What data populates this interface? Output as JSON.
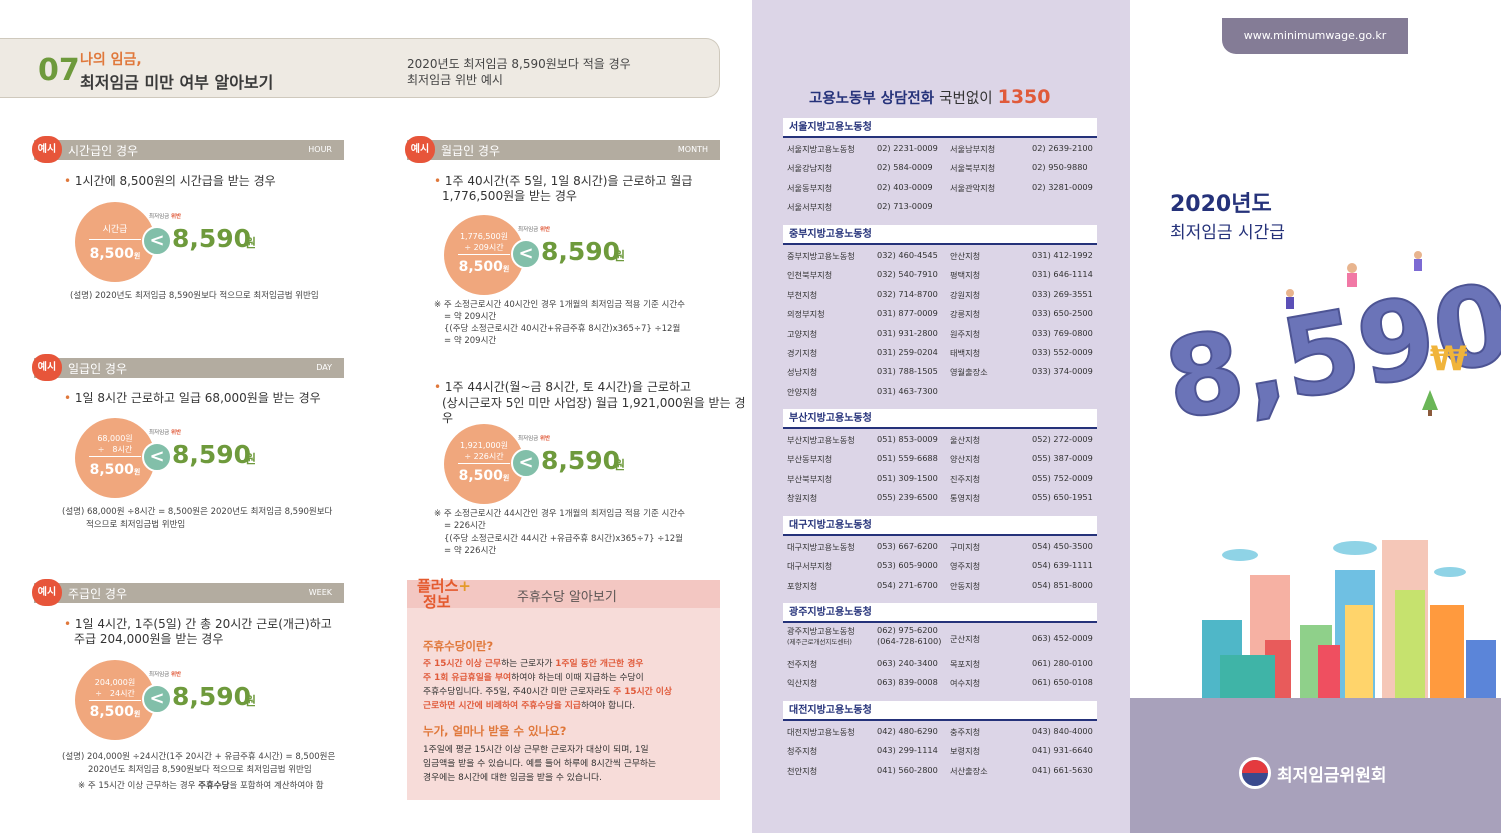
{
  "header": {
    "num": "07",
    "title1": "나의 임금,",
    "title2": "최저임금 미만 여부 알아보기",
    "desc1": "2020년도 최저임금 8,590원보다 적을 경우",
    "desc2": "최저임금 위반 예시"
  },
  "common": {
    "example": "예시",
    "violation_prefix": "최저임금",
    "violation": "위반",
    "result": "8,590",
    "won": "원",
    "won_small": "원",
    "lt": "<"
  },
  "hour": {
    "title": "시간급인 경우",
    "en": "HOUR",
    "bullet": "1시간에 8,500원의 시간급을 받는 경우",
    "top1": "시간급",
    "value": "8,500",
    "note": "(설명) 2020년도 최저임금 8,590원보다 적으므로 최저임금법 위반임"
  },
  "day": {
    "title": "일급인 경우",
    "en": "DAY",
    "bullet": "1일 8시간 근로하고 일급 68,000원을 받는 경우",
    "top1": "68,000원",
    "top2": "÷　8시간",
    "value": "8,500",
    "note1": "(설명) 68,000원 ÷8시간 = 8,500원은 2020년도 최저임금 8,590원보다",
    "note2": "적으므로 최저임금법 위반임"
  },
  "week": {
    "title": "주급인 경우",
    "en": "WEEK",
    "bullet1": "1일 4시간, 1주(5일) 간 총 20시간 근로(개근)하고",
    "bullet2": "주급 204,000원을 받는 경우",
    "top1": "204,000원",
    "top2": "÷　24시간",
    "value": "8,500",
    "note1": "(설명) 204,000원 ÷24시간(1주 20시간 + 유급주휴 4시간) = 8,500원은",
    "note2": "2020년도 최저임금 8,590원보다 적으므로 최저임금법 위반임",
    "note3a": "※ 주 15시간 이상 근무하는 경우 ",
    "note3b": "주휴수당",
    "note3c": "을 포함하여 계산하여야 함"
  },
  "month": {
    "title": "월급인 경우",
    "en": "MONTH",
    "bullet1": "1주 40시간(주 5일, 1일 8시간)을 근로하고 월급",
    "bullet2": "1,776,500원을 받는 경우",
    "top1": "1,776,500원",
    "top2": "÷ 209시간",
    "value": "8,500",
    "note1": "※ 주 소정근로시간 40시간인 경우 1개월의 최저임금 적용 기준 시간수",
    "note2": "= 약 209시간",
    "note3": "{(주당 소정근로시간 40시간+유급주휴 8시간)x365÷7} ÷12월",
    "note4": "= 약 209시간"
  },
  "month2": {
    "bullet1": "1주 44시간(월~금 8시간, 토 4시간)을 근로하고",
    "bullet2": "(상시근로자 5인 미만 사업장) 월급 1,921,000원을 받는 경우",
    "top1": "1,921,000원",
    "top2": "÷ 226시간",
    "value": "8,500",
    "note1": "※ 주 소정근로시간 44시간인 경우 1개월의 최저임금 적용 기준 시간수",
    "note2": "= 226시간",
    "note3": "{(주당 소정근로시간 44시간 +유급주휴 8시간)x365÷7} ÷12월",
    "note4": "= 약 226시간"
  },
  "plus": {
    "badge1": "플러스",
    "badge_plus": "+",
    "badge2": "정보",
    "title": "주휴수당 알아보기",
    "q1": "주휴수당이란?",
    "p1a": "주 15시간 이상 근무",
    "p1b": "하는 근로자가 ",
    "p1c": "1주일 동안 개근한 경우",
    "p1d": "주 1회 유급휴일을 부여",
    "p1e": "하여야 하는데 이때 지급하는 수당이",
    "p1f": "주휴수당입니다. 주5일, 주40시간 미만 근로자라도 ",
    "p1g": "주 15시간 이상",
    "p1h": "근로하면 시간에 비례하여 주휴수당을 지급",
    "p1i": "하여야 합니다.",
    "q2": "누가, 얼마나 받을 수 있나요?",
    "p2a": "1주일에 평균 15시간 이상 근무한 근로자가 대상이 되며, 1일",
    "p2b": "임금액을 받을 수 있습니다. 예를 들어 하루에 8시간씩 근무하는",
    "p2c": "경우에는 8시간에 대한 임금을 받을 수 있습니다."
  },
  "contact": {
    "label": "고용노동부 상담전화",
    "plain": "국번없이",
    "number": "1350"
  },
  "offices": [
    {
      "name": "서울지방고용노동청",
      "rows": [
        [
          "서울지방고용노동청",
          "02) 2231-0009",
          "서울남부지청",
          "02) 2639-2100"
        ],
        [
          "서울강남지청",
          "02) 584-0009",
          "서울북부지청",
          "02) 950-9880"
        ],
        [
          "서울동부지청",
          "02) 403-0009",
          "서울관악지청",
          "02) 3281-0009"
        ],
        [
          "서울서부지청",
          "02) 713-0009",
          "",
          ""
        ]
      ]
    },
    {
      "name": "중부지방고용노동청",
      "rows": [
        [
          "중부지방고용노동청",
          "032) 460-4545",
          "안산지청",
          "031) 412-1992"
        ],
        [
          "인천북부지청",
          "032) 540-7910",
          "평택지청",
          "031) 646-1114"
        ],
        [
          "부천지청",
          "032) 714-8700",
          "강원지청",
          "033) 269-3551"
        ],
        [
          "의정부지청",
          "031) 877-0009",
          "강릉지청",
          "033) 650-2500"
        ],
        [
          "고양지청",
          "031) 931-2800",
          "원주지청",
          "033) 769-0800"
        ],
        [
          "경기지청",
          "031) 259-0204",
          "태백지청",
          "033) 552-0009"
        ],
        [
          "성남지청",
          "031) 788-1505",
          "영월출장소",
          "033) 374-0009"
        ],
        [
          "안양지청",
          "031) 463-7300",
          "",
          ""
        ]
      ]
    },
    {
      "name": "부산지방고용노동청",
      "rows": [
        [
          "부산지방고용노동청",
          "051) 853-0009",
          "울산지청",
          "052) 272-0009"
        ],
        [
          "부산동부지청",
          "051) 559-6688",
          "양산지청",
          "055) 387-0009"
        ],
        [
          "부산북부지청",
          "051) 309-1500",
          "진주지청",
          "055) 752-0009"
        ],
        [
          "창원지청",
          "055) 239-6500",
          "통영지청",
          "055) 650-1951"
        ]
      ]
    },
    {
      "name": "대구지방고용노동청",
      "rows": [
        [
          "대구지방고용노동청",
          "053) 667-6200",
          "구미지청",
          "054) 450-3500"
        ],
        [
          "대구서부지청",
          "053) 605-9000",
          "영주지청",
          "054) 639-1111"
        ],
        [
          "포항지청",
          "054) 271-6700",
          "안동지청",
          "054) 851-8000"
        ]
      ]
    },
    {
      "name": "광주지방고용노동청",
      "rows": [
        [
          "광주지방고용노동청",
          "062) 975-6200",
          "군산지청",
          "063) 452-0009"
        ],
        [
          "전주지청",
          "063) 240-3400",
          "목포지청",
          "061) 280-0100"
        ],
        [
          "익산지청",
          "063) 839-0008",
          "여수지청",
          "061) 650-0108"
        ]
      ],
      "extra_sub": "(제주근로개선지도센터)",
      "extra_phone": "(064-728-6100)"
    },
    {
      "name": "대전지방고용노동청",
      "rows": [
        [
          "대전지방고용노동청",
          "042) 480-6290",
          "충주지청",
          "043) 840-4000"
        ],
        [
          "청주지청",
          "043) 299-1114",
          "보령지청",
          "041) 931-6640"
        ],
        [
          "천안지청",
          "041) 560-2800",
          "서산출장소",
          "041) 661-5630"
        ]
      ]
    }
  ],
  "right": {
    "url": "www.minimumwage.go.kr",
    "year": "2020년도",
    "subtitle": "최저임금 시간급",
    "big_number": "8,590",
    "currency": "₩",
    "org": "최저임금위원회"
  },
  "colors": {
    "accent_orange": "#e0783b",
    "accent_green": "#6e9a3c",
    "navy": "#25327a",
    "lavender": "#dcd5e7",
    "red": "#e05a3a"
  }
}
